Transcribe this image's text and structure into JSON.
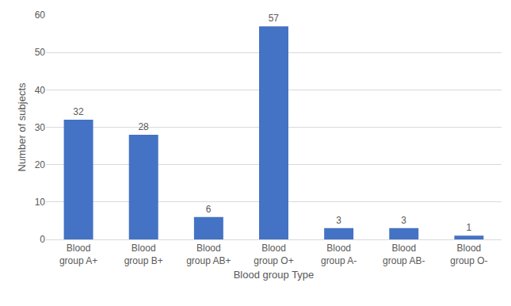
{
  "chart_data": {
    "type": "bar",
    "categories": [
      "Blood group A+",
      "Blood group B+",
      "Blood group AB+",
      "Blood group O+",
      "Blood group A-",
      "Blood group AB-",
      "Blood group O-"
    ],
    "values": [
      32,
      28,
      6,
      57,
      3,
      3,
      1
    ],
    "color": "#4472c4",
    "x_label": "Blood group Type",
    "y_label": "Number of subjects",
    "ylim": [
      0,
      60
    ],
    "yticks": [
      0,
      10,
      20,
      30,
      40,
      50,
      60
    ],
    "grid": true,
    "data_labels": true
  }
}
